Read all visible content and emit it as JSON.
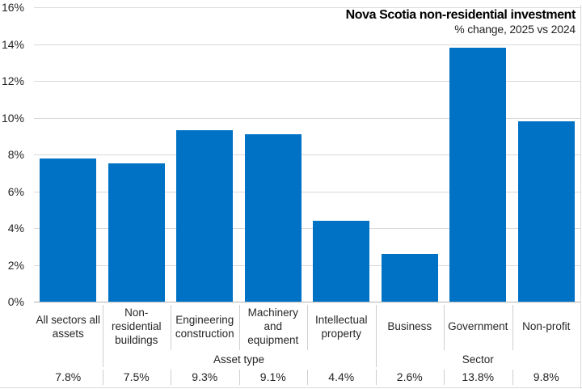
{
  "colors": {
    "bar": "#0072C6",
    "gridline": "#d9d9d9",
    "axis": "#b3b3b3",
    "divider": "#cfcfcf",
    "frame_border": "#d9d9d9",
    "text": "#262626",
    "title_text": "#000000"
  },
  "chart_data": {
    "type": "bar",
    "title": "Nova Scotia non-residential investment",
    "subtitle": "% change, 2025 vs 2024",
    "categories": [
      "All sectors all assets",
      "Non-residential buildings",
      "Engineering construction",
      "Machinery and equipment",
      "Intellectual property",
      "Business",
      "Government",
      "Non-profit"
    ],
    "category_lines": [
      [
        "All sectors all",
        "assets"
      ],
      [
        "Non-",
        "residential",
        "buildings"
      ],
      [
        "Engineering",
        "construction"
      ],
      [
        "Machinery",
        "and",
        "equipment"
      ],
      [
        "Intellectual",
        "property"
      ],
      [
        "Business"
      ],
      [
        "Government"
      ],
      [
        "Non-profit"
      ]
    ],
    "values": [
      7.8,
      7.5,
      9.3,
      9.1,
      4.4,
      2.6,
      13.8,
      9.8
    ],
    "value_labels": [
      "7.8%",
      "7.5%",
      "9.3%",
      "9.1%",
      "4.4%",
      "2.6%",
      "13.8%",
      "9.8%"
    ],
    "groups": [
      {
        "label": "",
        "start": 0,
        "end": 0
      },
      {
        "label": "Asset type",
        "start": 1,
        "end": 4
      },
      {
        "label": "Sector",
        "start": 5,
        "end": 7
      }
    ],
    "y_ticks": [
      "0%",
      "2%",
      "4%",
      "6%",
      "8%",
      "10%",
      "12%",
      "14%",
      "16%"
    ],
    "y_tick_values": [
      0,
      2,
      4,
      6,
      8,
      10,
      12,
      14,
      16
    ],
    "ylim": [
      0,
      16
    ],
    "grid": "horizontal",
    "legend": "none",
    "xlabel": "",
    "ylabel": ""
  }
}
